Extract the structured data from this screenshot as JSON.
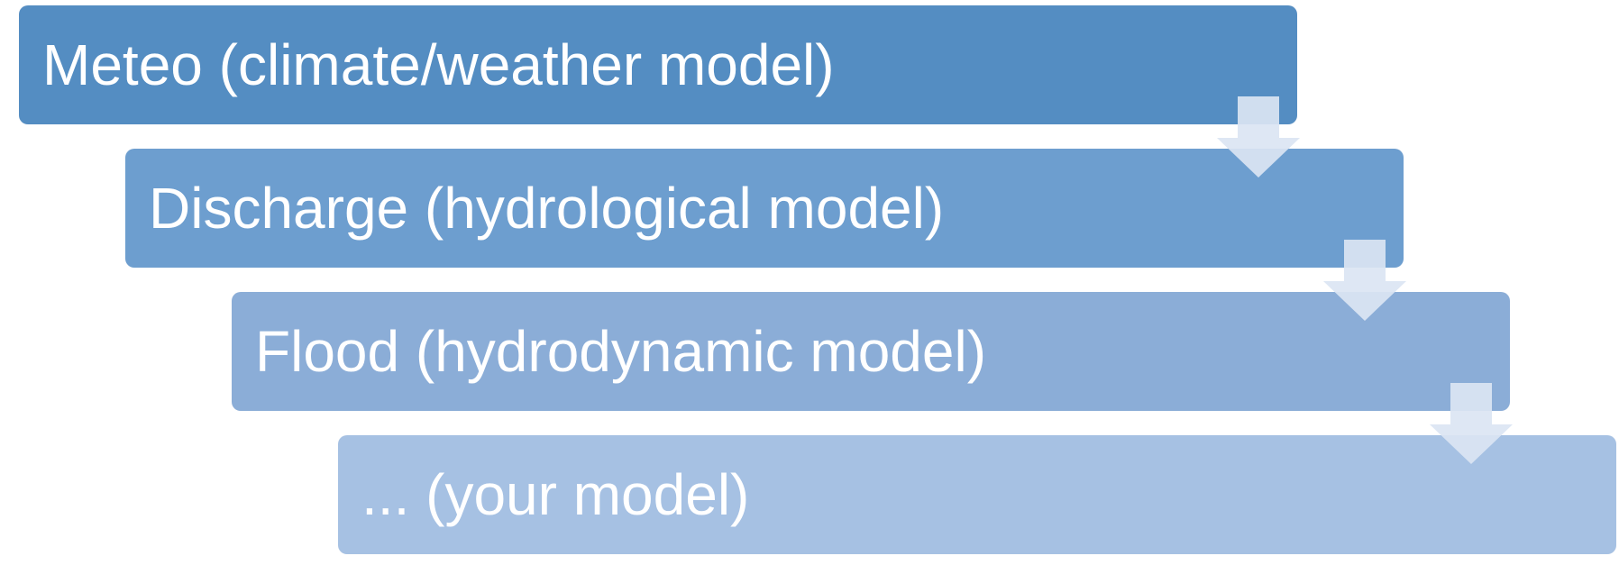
{
  "diagram": {
    "steps": [
      {
        "label": "Meteo (climate/weather model)",
        "color": "#548dc2"
      },
      {
        "label": "Discharge (hydrological model)",
        "color": "#6d9ecf"
      },
      {
        "label": "Flood (hydrodynamic model)",
        "color": "#8badd7"
      },
      {
        "label": "... (your model)",
        "color": "#a6c1e3"
      }
    ],
    "arrow_color": "#dbe5f3",
    "arrow_icon": "down-arrow-icon"
  }
}
